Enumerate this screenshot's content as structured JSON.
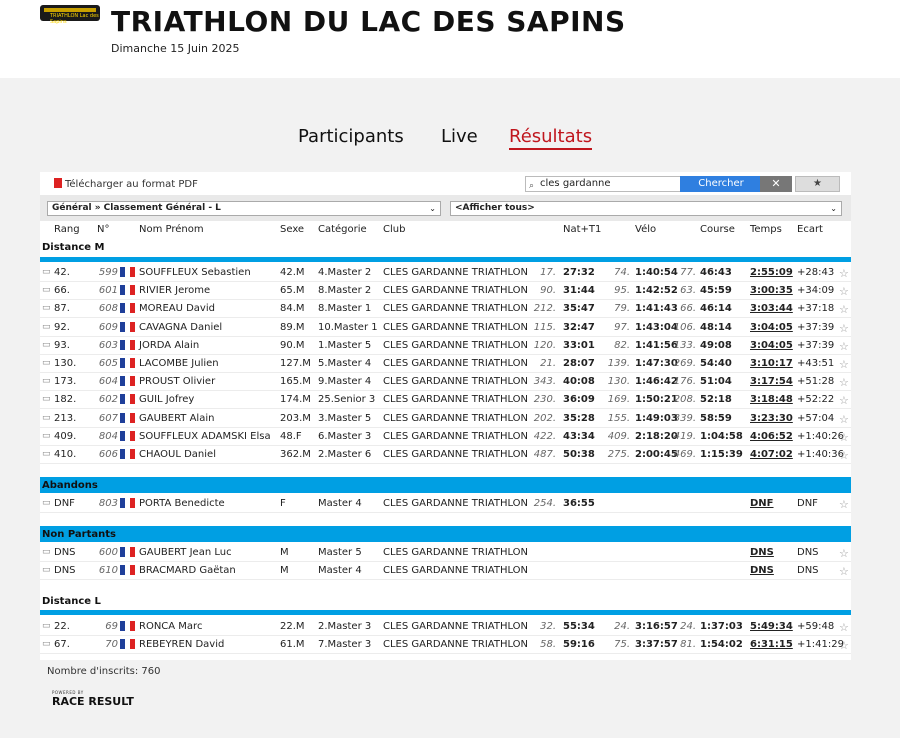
{
  "header": {
    "logo_text": "TRIATHLON Lac des Sapins",
    "title": "TRIATHLON DU LAC DES SAPINS",
    "date": "Dimanche 15 Juin 2025"
  },
  "tabs": [
    "Participants",
    "Live",
    "Résultats"
  ],
  "toolbar": {
    "pdf_label": "Télécharger au format PDF",
    "search_value": "cles gardanne",
    "search_button": "Chercher",
    "clear_button": "✕",
    "fav_button": "★"
  },
  "filters": {
    "ranking": "Général » Classement Général - L",
    "show": "<Afficher tous>"
  },
  "columns": [
    "Rang",
    "N°",
    "Nom Prénom",
    "Sexe",
    "Catégorie",
    "Club",
    "Nat+T1",
    "Vélo",
    "Course",
    "Temps",
    "Ecart"
  ],
  "sections": {
    "distance_m": "Distance M",
    "abandons": "Abandons",
    "non_partants": "Non Partants",
    "distance_l": "Distance L"
  },
  "distance_m_rows": [
    {
      "rang": "42.",
      "num": "599",
      "nom": "SOUFFLEUX Sebastien",
      "sexe": "42.M",
      "cat": "4.Master 2",
      "club": "CLES GARDANNE TRIATHLON",
      "nat_r": "17.",
      "nat": "27:32",
      "velo_r": "74.",
      "velo": "1:40:54",
      "course_r": "77.",
      "course": "46:43",
      "temps": "2:55:09",
      "ecart": "+28:43"
    },
    {
      "rang": "66.",
      "num": "601",
      "nom": "RIVIER Jerome",
      "sexe": "65.M",
      "cat": "8.Master 2",
      "club": "CLES GARDANNE TRIATHLON",
      "nat_r": "90.",
      "nat": "31:44",
      "velo_r": "95.",
      "velo": "1:42:52",
      "course_r": "63.",
      "course": "45:59",
      "temps": "3:00:35",
      "ecart": "+34:09"
    },
    {
      "rang": "87.",
      "num": "608",
      "nom": "MOREAU David",
      "sexe": "84.M",
      "cat": "8.Master 1",
      "club": "CLES GARDANNE TRIATHLON",
      "nat_r": "212.",
      "nat": "35:47",
      "velo_r": "79.",
      "velo": "1:41:43",
      "course_r": "66.",
      "course": "46:14",
      "temps": "3:03:44",
      "ecart": "+37:18"
    },
    {
      "rang": "92.",
      "num": "609",
      "nom": "CAVAGNA Daniel",
      "sexe": "89.M",
      "cat": "10.Master 1",
      "club": "CLES GARDANNE TRIATHLON",
      "nat_r": "115.",
      "nat": "32:47",
      "velo_r": "97.",
      "velo": "1:43:04",
      "course_r": "106.",
      "course": "48:14",
      "temps": "3:04:05",
      "ecart": "+37:39"
    },
    {
      "rang": "93.",
      "num": "603",
      "nom": "JORDA Alain",
      "sexe": "90.M",
      "cat": "1.Master 5",
      "club": "CLES GARDANNE TRIATHLON",
      "nat_r": "120.",
      "nat": "33:01",
      "velo_r": "82.",
      "velo": "1:41:56",
      "course_r": "133.",
      "course": "49:08",
      "temps": "3:04:05",
      "ecart": "+37:39"
    },
    {
      "rang": "130.",
      "num": "605",
      "nom": "LACOMBE Julien",
      "sexe": "127.M",
      "cat": "5.Master 4",
      "club": "CLES GARDANNE TRIATHLON",
      "nat_r": "21.",
      "nat": "28:07",
      "velo_r": "139.",
      "velo": "1:47:30",
      "course_r": "269.",
      "course": "54:40",
      "temps": "3:10:17",
      "ecart": "+43:51"
    },
    {
      "rang": "173.",
      "num": "604",
      "nom": "PROUST Olivier",
      "sexe": "165.M",
      "cat": "9.Master 4",
      "club": "CLES GARDANNE TRIATHLON",
      "nat_r": "343.",
      "nat": "40:08",
      "velo_r": "130.",
      "velo": "1:46:42",
      "course_r": "176.",
      "course": "51:04",
      "temps": "3:17:54",
      "ecart": "+51:28"
    },
    {
      "rang": "182.",
      "num": "602",
      "nom": "GUIL Jofrey",
      "sexe": "174.M",
      "cat": "25.Senior 3",
      "club": "CLES GARDANNE TRIATHLON",
      "nat_r": "230.",
      "nat": "36:09",
      "velo_r": "169.",
      "velo": "1:50:21",
      "course_r": "208.",
      "course": "52:18",
      "temps": "3:18:48",
      "ecart": "+52:22"
    },
    {
      "rang": "213.",
      "num": "607",
      "nom": "GAUBERT Alain",
      "sexe": "203.M",
      "cat": "3.Master 5",
      "club": "CLES GARDANNE TRIATHLON",
      "nat_r": "202.",
      "nat": "35:28",
      "velo_r": "155.",
      "velo": "1:49:03",
      "course_r": "339.",
      "course": "58:59",
      "temps": "3:23:30",
      "ecart": "+57:04"
    },
    {
      "rang": "409.",
      "num": "804",
      "nom": "SOUFFLEUX ADAMSKI Elsa",
      "sexe": "48.F",
      "cat": "6.Master 3",
      "club": "CLES GARDANNE TRIATHLON",
      "nat_r": "422.",
      "nat": "43:34",
      "velo_r": "409.",
      "velo": "2:18:20",
      "course_r": "419.",
      "course": "1:04:58",
      "temps": "4:06:52",
      "ecart": "+1:40:26"
    },
    {
      "rang": "410.",
      "num": "606",
      "nom": "CHAOUL Daniel",
      "sexe": "362.M",
      "cat": "2.Master 6",
      "club": "CLES GARDANNE TRIATHLON",
      "nat_r": "487.",
      "nat": "50:38",
      "velo_r": "275.",
      "velo": "2:00:45",
      "course_r": "469.",
      "course": "1:15:39",
      "temps": "4:07:02",
      "ecart": "+1:40:36"
    }
  ],
  "abandon_rows": [
    {
      "rang": "DNF",
      "num": "803",
      "nom": "PORTA Benedicte",
      "sexe": "F",
      "cat": "Master 4",
      "club": "CLES GARDANNE TRIATHLON",
      "nat_r": "254.",
      "nat": "36:55",
      "velo_r": "",
      "velo": "",
      "course_r": "",
      "course": "",
      "temps": "DNF",
      "ecart": "DNF"
    }
  ],
  "dns_rows": [
    {
      "rang": "DNS",
      "num": "600",
      "nom": "GAUBERT Jean Luc",
      "sexe": "M",
      "cat": "Master 5",
      "club": "CLES GARDANNE TRIATHLON",
      "nat_r": "",
      "nat": "",
      "velo_r": "",
      "velo": "",
      "course_r": "",
      "course": "",
      "temps": "DNS",
      "ecart": "DNS"
    },
    {
      "rang": "DNS",
      "num": "610",
      "nom": "BRACMARD Gaëtan",
      "sexe": "M",
      "cat": "Master 4",
      "club": "CLES GARDANNE TRIATHLON",
      "nat_r": "",
      "nat": "",
      "velo_r": "",
      "velo": "",
      "course_r": "",
      "course": "",
      "temps": "DNS",
      "ecart": "DNS"
    }
  ],
  "distance_l_rows": [
    {
      "rang": "22.",
      "num": "69",
      "nom": "RONCA Marc",
      "sexe": "22.M",
      "cat": "2.Master 3",
      "club": "CLES GARDANNE TRIATHLON",
      "nat_r": "32.",
      "nat": "55:34",
      "velo_r": "24.",
      "velo": "3:16:57",
      "course_r": "24.",
      "course": "1:37:03",
      "temps": "5:49:34",
      "ecart": "+59:48"
    },
    {
      "rang": "67.",
      "num": "70",
      "nom": "REBEYREN David",
      "sexe": "61.M",
      "cat": "7.Master 3",
      "club": "CLES GARDANNE TRIATHLON",
      "nat_r": "58.",
      "nat": "59:16",
      "velo_r": "75.",
      "velo": "3:37:57",
      "course_r": "81.",
      "course": "1:54:02",
      "temps": "6:31:15",
      "ecart": "+1:41:29"
    }
  ],
  "footer": {
    "inscrits": "Nombre d'inscrits: 760",
    "powered": "POWERED BY",
    "brand": "RACE RESULT"
  },
  "colors": {
    "accent": "#c0161d",
    "bar": "#009fe3",
    "button": "#2f7fe0"
  }
}
